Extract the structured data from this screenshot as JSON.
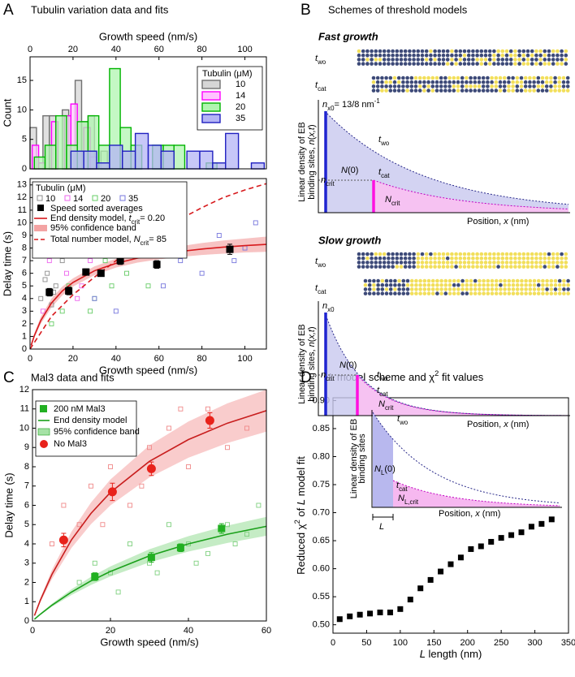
{
  "panels": [
    {
      "letter": "A",
      "title": "Tubulin variation data and fits"
    },
    {
      "letter": "B",
      "title": "Schemes of threshold models"
    },
    {
      "letter": "C",
      "title": "Mal3 data and fits"
    },
    {
      "letter": "D",
      "title": [
        {
          "it": "L"
        },
        " model scheme and χ",
        {
          "sup": "2"
        },
        " fit values"
      ]
    }
  ],
  "scheme": {
    "ylabel": [
      "Linear density of EB",
      [
        "binding sites, ",
        {
          "it": "n"
        },
        "(",
        {
          "it": "x,t"
        },
        ")"
      ]
    ],
    "xlabel": [
      "Position, ",
      {
        "it": "x"
      },
      " (nm)"
    ],
    "fast": {
      "title": "Fast growth",
      "t_wo": [
        {
          "it": "t"
        },
        {
          "sub": "wo"
        }
      ],
      "t_cat": [
        {
          "it": "t"
        },
        {
          "sub": "cat"
        }
      ],
      "n_x0": [
        {
          "it": "n"
        },
        {
          "sub": "x0"
        },
        "= 13/8 nm",
        {
          "sup": "-1"
        }
      ],
      "N0": [
        {
          "it": "N"
        },
        "(0)"
      ],
      "n_crit": [
        {
          "it": "n"
        },
        {
          "sub": "crit"
        }
      ],
      "N_crit": [
        {
          "it": "N"
        },
        {
          "sub": "crit"
        }
      ]
    },
    "slow": {
      "title": "Slow growth",
      "t_wo": [
        {
          "it": "t"
        },
        {
          "sub": "wo"
        }
      ],
      "t_cat": [
        {
          "it": "t"
        },
        {
          "sub": "cat"
        }
      ],
      "n_x0": [
        {
          "it": "n"
        },
        {
          "sub": "x0"
        }
      ],
      "N0": [
        {
          "it": "N"
        },
        "(0)"
      ],
      "n_crit": [
        {
          "it": "n"
        },
        {
          "sub": "crit"
        }
      ],
      "N_crit": [
        {
          "it": "N"
        },
        {
          "sub": "crit"
        }
      ]
    }
  },
  "inset": {
    "ylabel": [
      "Linear density of EB",
      "binding sites"
    ],
    "t_wo": [
      {
        "it": "t"
      },
      {
        "sub": "wo"
      }
    ],
    "t_cat": [
      {
        "it": "t"
      },
      {
        "sub": "cat"
      }
    ],
    "N_L0": [
      {
        "it": "N"
      },
      {
        "sub": "L"
      },
      "(0)"
    ],
    "N_Lcrit": [
      {
        "it": "N"
      },
      {
        "sub": "L,crit"
      }
    ],
    "L": [
      {
        "it": "L"
      }
    ],
    "xlabel": [
      "Position, ",
      {
        "it": "x"
      },
      " (nm)"
    ]
  },
  "chart_data": [
    {
      "type": "histogram",
      "xlabel": "Growth speed (nm/s)",
      "ylabel": "Count",
      "x_axis": "top",
      "xlim": [
        0,
        110
      ],
      "xticks": [
        0,
        20,
        40,
        60,
        80,
        100
      ],
      "ylim": [
        0,
        19
      ],
      "yticks": [
        0,
        5,
        10,
        15
      ],
      "legend_title": "Tubulin (μM)",
      "series": [
        {
          "name": "10",
          "color": "#707070",
          "fill": "#d6d6d6",
          "bins": [
            0,
            3,
            6,
            9,
            12,
            15,
            18,
            21,
            24,
            27,
            30,
            33,
            36,
            39
          ],
          "values": [
            7,
            0,
            9,
            9,
            0,
            10,
            0,
            15,
            8,
            9,
            0,
            3,
            0
          ]
        },
        {
          "name": "14",
          "color": "#ff00ff",
          "fill": "#ffc4ff",
          "bins": [
            1,
            4,
            7,
            10,
            13,
            16,
            19,
            22,
            25,
            28,
            31
          ],
          "values": [
            4,
            1,
            0,
            8,
            0,
            9,
            11,
            0,
            7,
            2
          ]
        },
        {
          "name": "20",
          "color": "#00b400",
          "fill": "#b0f5b0",
          "bins": [
            2,
            7,
            12,
            17,
            22,
            27,
            32,
            37,
            42,
            47,
            52,
            57,
            62,
            67,
            72,
            77,
            82,
            87,
            92
          ],
          "values": [
            2,
            4,
            9,
            4,
            8,
            9,
            4,
            17,
            7,
            4,
            0,
            4,
            4,
            4,
            0,
            0,
            1,
            0
          ]
        },
        {
          "name": "35",
          "color": "#2020c0",
          "fill": "#b4b4f5",
          "bins": [
            19,
            25,
            31,
            37,
            43,
            49,
            55,
            61,
            67,
            73,
            79,
            85,
            91,
            97,
            103,
            109
          ],
          "values": [
            3,
            3,
            1,
            4,
            3,
            6,
            4,
            3,
            0,
            3,
            3,
            1,
            6,
            0,
            1
          ]
        }
      ]
    },
    {
      "type": "scatter",
      "xlabel": "Growth speed (nm/s)",
      "ylabel": "Delay time (s)",
      "xlim": [
        0,
        110
      ],
      "xticks": [
        0,
        20,
        40,
        60,
        80,
        100
      ],
      "ylim": [
        0,
        13.5
      ],
      "yticks": [
        0,
        1,
        2,
        3,
        4,
        5,
        6,
        7,
        8,
        9,
        10,
        11,
        12,
        13
      ],
      "legend_title": "Tubulin (μM)",
      "series": [
        {
          "name": "10",
          "color": "#8c8c8c",
          "marker": "open-square",
          "x": [
            5,
            8,
            10,
            12,
            15,
            7,
            11,
            14
          ],
          "values": [
            4,
            6,
            3.5,
            5,
            7,
            5.5,
            4.5,
            8
          ]
        },
        {
          "name": "14",
          "color": "#ee66ee",
          "marker": "open-square",
          "x": [
            6,
            9,
            13,
            17,
            20,
            24,
            28,
            22
          ],
          "values": [
            3,
            7,
            9,
            6,
            8,
            5,
            7,
            4
          ]
        },
        {
          "name": "20",
          "color": "#66cc66",
          "marker": "open-square",
          "x": [
            10,
            18,
            25,
            30,
            35,
            40,
            45,
            50,
            55,
            15,
            28,
            38
          ],
          "values": [
            2,
            5,
            9,
            4,
            7,
            10,
            6,
            8,
            5,
            3,
            3,
            5
          ]
        },
        {
          "name": "35",
          "color": "#7777dd",
          "marker": "open-square",
          "x": [
            30,
            40,
            52,
            62,
            70,
            80,
            88,
            95,
            100,
            105
          ],
          "values": [
            4,
            3,
            8,
            5,
            7,
            6,
            9,
            7,
            8,
            10
          ]
        },
        {
          "name": "Speed sorted averages",
          "color": "#000000",
          "marker": "square",
          "x": [
            9,
            18,
            26,
            33,
            42,
            59,
            93
          ],
          "values": [
            4.5,
            4.6,
            6.1,
            6.0,
            7.0,
            6.7,
            7.9
          ],
          "errors": [
            0.3,
            0.3,
            0.25,
            0.25,
            0.3,
            0.3,
            0.4
          ]
        }
      ],
      "bands": [
        {
          "name": "95% confidence band",
          "color": "#f3a3a3",
          "x": [
            0.5,
            2,
            5,
            10,
            15,
            20,
            30,
            40,
            50,
            60,
            70,
            80,
            90,
            100,
            110
          ],
          "lower": [
            0.2,
            0.9,
            2.0,
            3.3,
            4.25,
            4.95,
            5.85,
            6.45,
            6.85,
            7.1,
            7.3,
            7.45,
            7.55,
            7.65,
            7.7
          ],
          "upper": [
            0.4,
            1.25,
            2.55,
            4.0,
            4.95,
            5.6,
            6.55,
            7.15,
            7.6,
            7.9,
            8.15,
            8.4,
            8.6,
            8.75,
            8.9
          ]
        }
      ],
      "curves": [
        {
          "name": [
            "End density model, ",
            {
              "it": "t"
            },
            {
              "sub": "crit"
            },
            "= 0.20"
          ],
          "color": "#d7191c",
          "dash": false,
          "x": [
            0.5,
            2,
            5,
            10,
            15,
            20,
            30,
            40,
            50,
            60,
            70,
            80,
            90,
            100,
            110
          ],
          "values": [
            0.29,
            1.06,
            2.26,
            3.65,
            4.6,
            5.28,
            6.2,
            6.79,
            7.2,
            7.5,
            7.73,
            7.92,
            8.07,
            8.19,
            8.29
          ]
        },
        {
          "name": [
            "Total number model, ",
            {
              "it": "N"
            },
            {
              "sub": "crit"
            },
            "= 85"
          ],
          "color": "#d7191c",
          "dash": true,
          "x": [
            0,
            10,
            20,
            30,
            40,
            50,
            60,
            70,
            80,
            90,
            100,
            110
          ],
          "values": [
            0,
            2.6,
            4.3,
            5.7,
            7.0,
            8.2,
            9.3,
            10.3,
            11.2,
            12.0,
            12.6,
            13.1
          ]
        }
      ]
    },
    {
      "type": "scatter",
      "xlabel": "Growth speed (nm/s)",
      "ylabel": "Delay time (s)",
      "xlim": [
        0,
        60
      ],
      "xticks": [
        0,
        20,
        40,
        60
      ],
      "ylim": [
        0,
        12
      ],
      "yticks": [
        0,
        1,
        2,
        3,
        4,
        5,
        6,
        7,
        8,
        9,
        10,
        11,
        12
      ],
      "series": [
        {
          "color": "#f08a8a",
          "marker": "open-square",
          "x": [
            5,
            8,
            12,
            15,
            20,
            25,
            30,
            35,
            40,
            45,
            50,
            55,
            18,
            28,
            38
          ],
          "values": [
            4,
            6,
            5,
            7,
            8,
            6,
            9,
            10,
            8,
            11,
            9,
            10,
            5,
            7,
            11
          ]
        },
        {
          "color": "#7fd07f",
          "marker": "open-square",
          "x": [
            12,
            16,
            20,
            25,
            30,
            35,
            40,
            45,
            50,
            55,
            58,
            22,
            32,
            42,
            52
          ],
          "values": [
            2,
            3,
            2.5,
            4,
            3,
            5,
            4,
            3.5,
            5,
            4.5,
            6,
            1.5,
            2.5,
            3,
            4
          ]
        },
        {
          "name": "200 nM Mal3",
          "color": "#22b022",
          "marker": "square",
          "x": [
            16,
            30.5,
            38,
            48.5
          ],
          "values": [
            2.3,
            3.3,
            3.8,
            4.8
          ],
          "errors": [
            0.2,
            0.25,
            0.2,
            0.25
          ]
        },
        {
          "name": "No Mal3",
          "color": "#e8221b",
          "marker": "circle",
          "x": [
            8,
            20.5,
            30.5,
            45.5
          ],
          "values": [
            4.2,
            6.7,
            7.9,
            10.4
          ],
          "errors": [
            0.35,
            0.45,
            0.35,
            0.4
          ]
        }
      ],
      "bands": [
        {
          "name": "95% confidence band",
          "color": "#a6e2a6",
          "x": [
            0.5,
            2,
            5,
            10,
            15,
            20,
            30,
            40,
            50,
            60
          ],
          "lower": [
            0.08,
            0.31,
            0.74,
            1.35,
            1.87,
            2.31,
            3.04,
            3.6,
            4.05,
            4.42
          ],
          "upper": [
            0.1,
            0.39,
            0.9,
            1.65,
            2.29,
            2.83,
            3.72,
            4.4,
            4.95,
            5.4
          ]
        },
        {
          "color": "#f6b0b0",
          "x": [
            0.5,
            2,
            5,
            10,
            15,
            20,
            30,
            40,
            50,
            60
          ],
          "lower": [
            0.25,
            0.96,
            2.18,
            3.79,
            5.02,
            6.0,
            7.45,
            8.47,
            9.23,
            9.82
          ],
          "upper": [
            0.31,
            1.18,
            2.66,
            4.63,
            6.14,
            7.34,
            9.11,
            10.35,
            11.29,
            12.0
          ]
        }
      ],
      "curves": [
        {
          "name": "End density model",
          "color": "#1aa01a",
          "dash": false,
          "x": [
            0.5,
            2,
            5,
            10,
            15,
            20,
            30,
            40,
            50,
            60
          ],
          "values": [
            0.09,
            0.35,
            0.82,
            1.5,
            2.08,
            2.57,
            3.38,
            4.0,
            4.5,
            4.91
          ]
        },
        {
          "color": "#c81e1e",
          "dash": false,
          "x": [
            0.5,
            2,
            5,
            10,
            15,
            20,
            30,
            40,
            50,
            60
          ],
          "values": [
            0.28,
            1.07,
            2.42,
            4.21,
            5.58,
            6.67,
            8.28,
            9.41,
            10.26,
            10.91
          ]
        }
      ]
    },
    {
      "type": "scatter",
      "xlabel": [
        {
          "it": "L"
        },
        " length (nm)"
      ],
      "ylabel": [
        "Reduced χ",
        {
          "sup": "2"
        },
        " of ",
        {
          "it": "L"
        },
        " model fit"
      ],
      "xlim": [
        0,
        350
      ],
      "xticks": [
        0,
        50,
        100,
        150,
        200,
        250,
        300,
        350
      ],
      "ylim": [
        0.485,
        0.905
      ],
      "yticks": [
        {
          "value": 0.5,
          "label": "0.50"
        },
        0.55,
        {
          "value": 0.6,
          "label": "0.60"
        },
        0.65,
        {
          "value": 0.7,
          "label": "0.70"
        },
        0.75,
        {
          "value": 0.8,
          "label": "0.80"
        },
        0.85,
        {
          "value": 0.9,
          "label": "0.90"
        }
      ],
      "series": [
        {
          "color": "#000000",
          "marker": "square",
          "x": [
            10,
            25,
            40,
            55,
            70,
            85,
            100,
            115,
            130,
            145,
            160,
            175,
            190,
            205,
            220,
            235,
            250,
            265,
            280,
            295,
            310,
            325
          ],
          "values": [
            0.51,
            0.515,
            0.518,
            0.52,
            0.522,
            0.522,
            0.528,
            0.545,
            0.565,
            0.58,
            0.595,
            0.608,
            0.62,
            0.635,
            0.64,
            0.648,
            0.655,
            0.66,
            0.665,
            0.675,
            0.68,
            0.688
          ]
        }
      ]
    }
  ]
}
